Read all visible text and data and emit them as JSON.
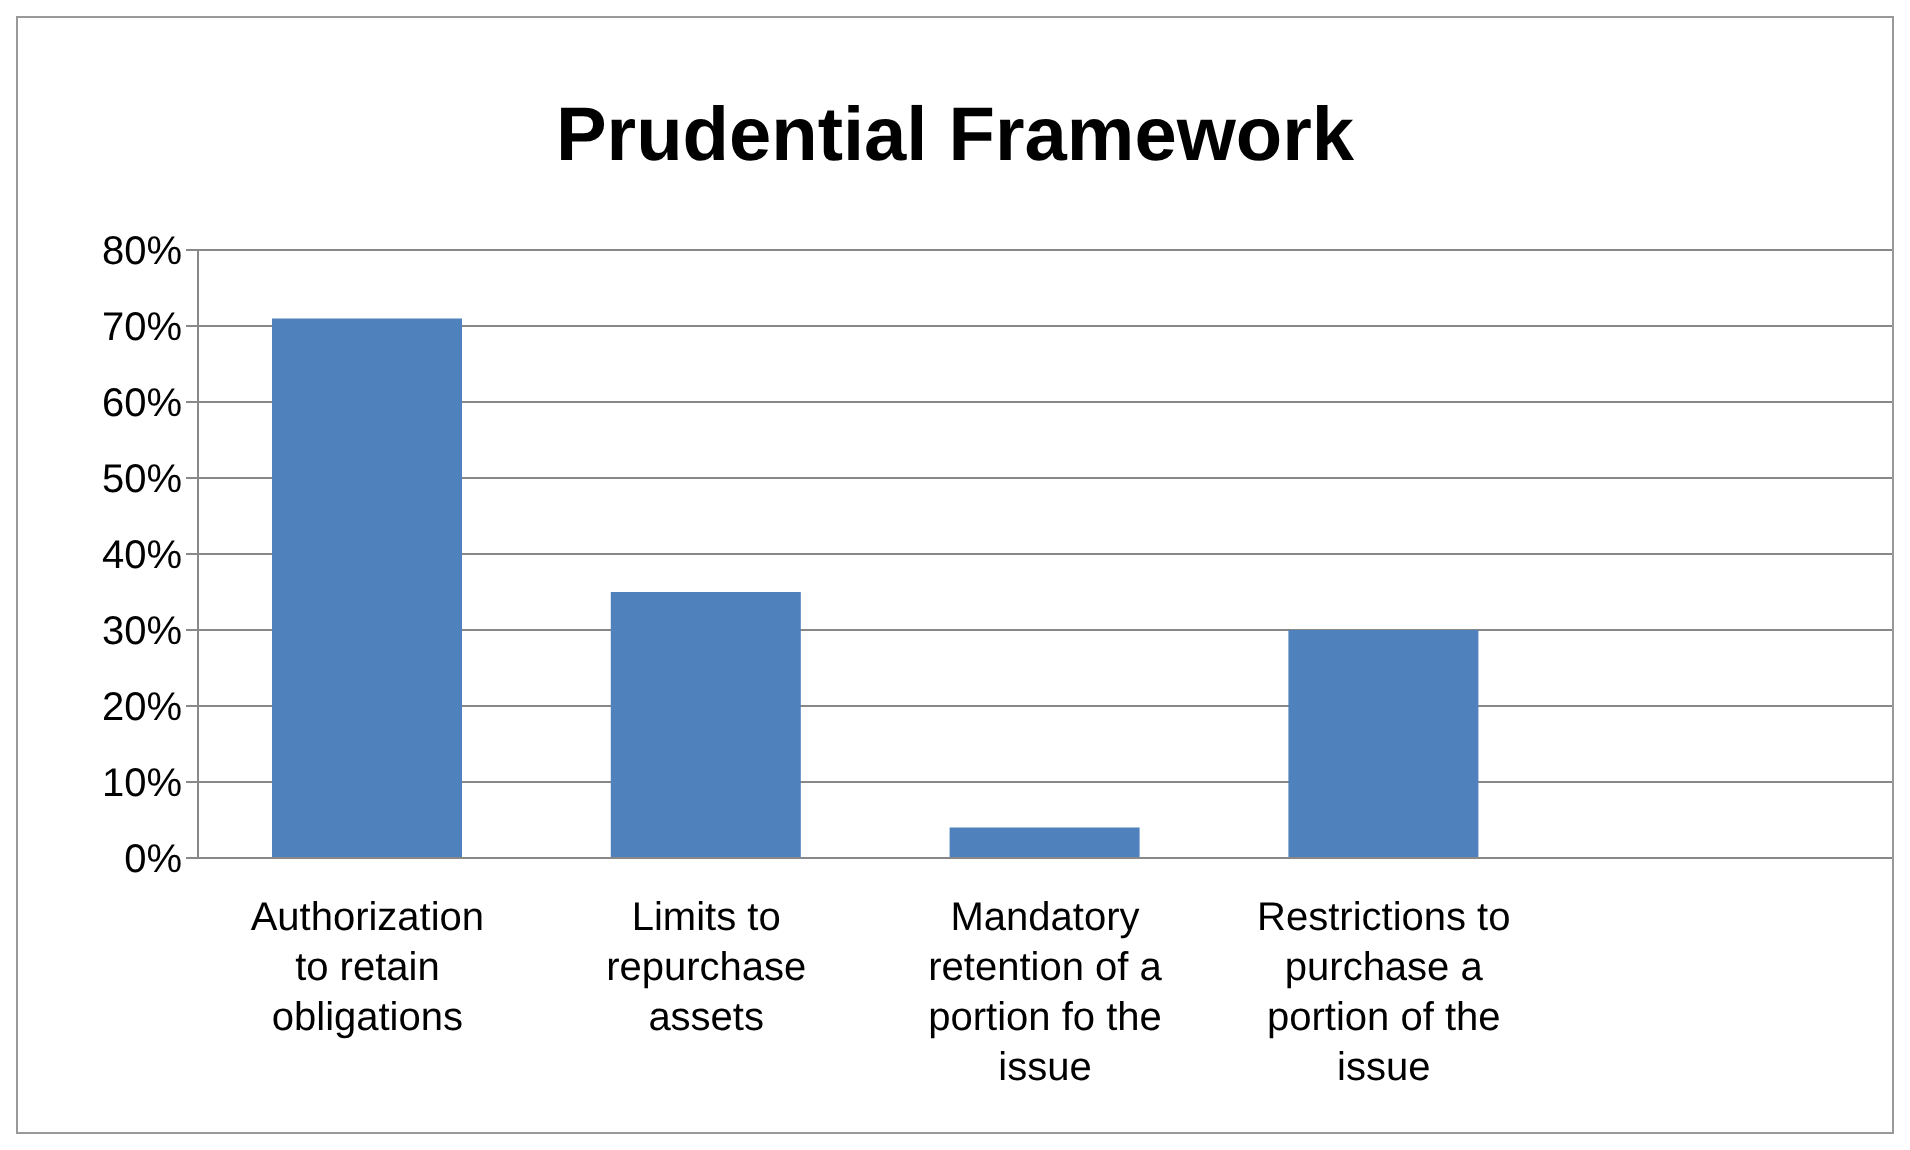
{
  "chart_data": {
    "type": "bar",
    "title": "Prudential Framework",
    "categories": [
      "Authorization to retain obligations",
      "Limits to repurchase assets",
      "Mandatory retention of a portion fo the issue",
      "Restrictions to purchase a portion of the issue",
      null
    ],
    "values": [
      71,
      35,
      4,
      30,
      null
    ],
    "color": "#4f81bd",
    "ylim": [
      0,
      80
    ],
    "yticks": [
      {
        "value": 0,
        "label": "0%"
      },
      {
        "value": 10,
        "label": "10%"
      },
      {
        "value": 20,
        "label": "20%"
      },
      {
        "value": 30,
        "label": "30%"
      },
      {
        "value": 40,
        "label": "40%"
      },
      {
        "value": 50,
        "label": "50%"
      },
      {
        "value": 60,
        "label": "60%"
      },
      {
        "value": 70,
        "label": "70%"
      },
      {
        "value": 80,
        "label": "80%"
      }
    ],
    "grid": "y",
    "legend": false
  }
}
